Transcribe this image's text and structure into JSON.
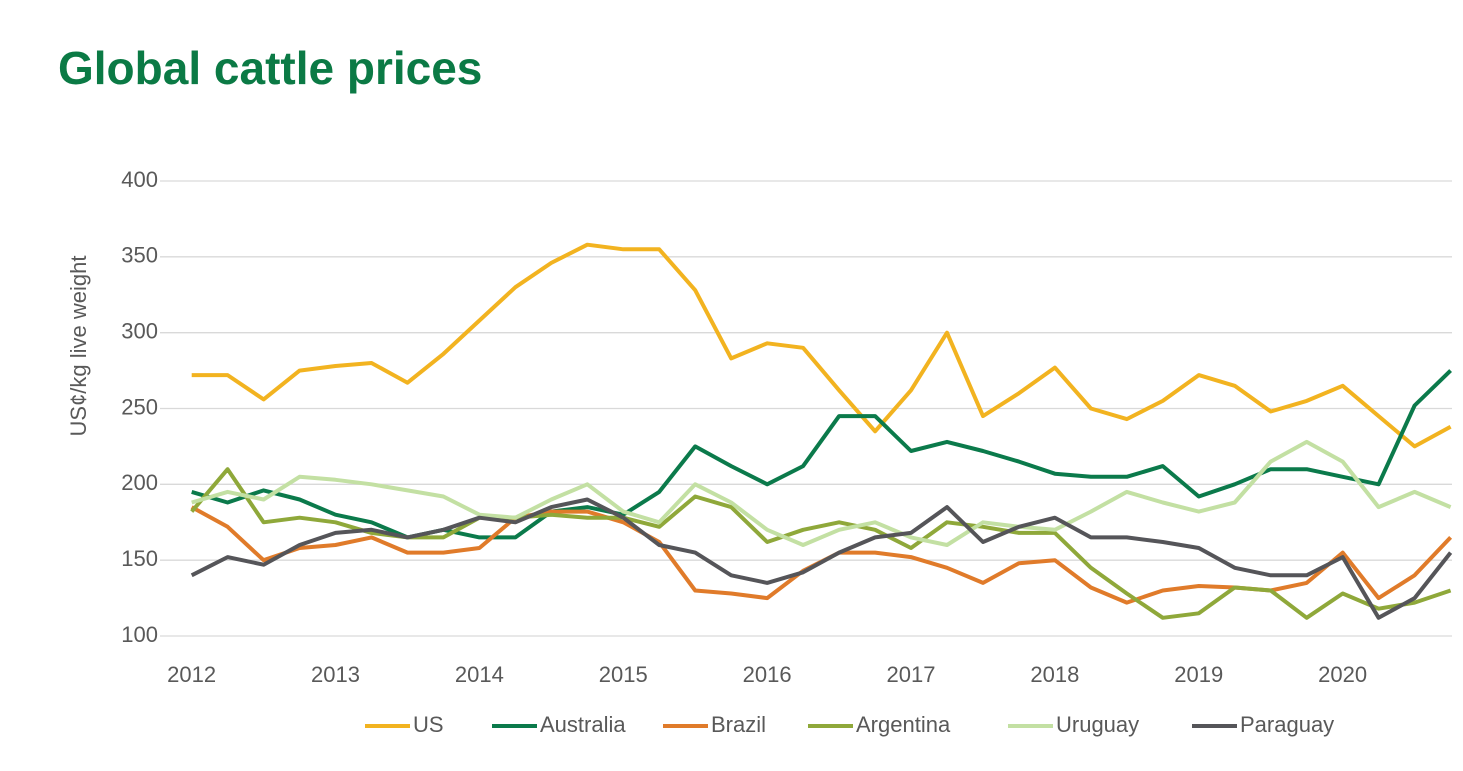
{
  "chart_data": {
    "type": "line",
    "title": "Global cattle prices",
    "y_label": "US¢/kg live weight",
    "grid": true,
    "legend": "bottom",
    "xlim": [
      2011.78,
      2020.76
    ],
    "xticks": [
      2012,
      2013,
      2014,
      2015,
      2016,
      2017,
      2018,
      2019,
      2020
    ],
    "ylim": [
      100,
      400
    ],
    "yticks": [
      100,
      150,
      200,
      250,
      300,
      350,
      400
    ],
    "x": [
      2012,
      2012.25,
      2012.5,
      2012.75,
      2013,
      2013.25,
      2013.5,
      2013.75,
      2014,
      2014.25,
      2014.5,
      2014.75,
      2015,
      2015.25,
      2015.5,
      2015.75,
      2016,
      2016.25,
      2016.5,
      2016.75,
      2017,
      2017.25,
      2017.5,
      2017.75,
      2018,
      2018.25,
      2018.5,
      2018.75,
      2019,
      2019.25,
      2019.5,
      2019.75,
      2020,
      2020.25,
      2020.5,
      2020.75
    ],
    "series": [
      {
        "name": "US",
        "color": "#f2b320",
        "values": [
          272,
          272,
          256,
          275,
          278,
          280,
          267,
          286,
          308,
          330,
          346,
          358,
          355,
          355,
          328,
          283,
          293,
          290,
          262,
          235,
          262,
          300,
          245,
          260,
          277,
          250,
          243,
          255,
          272,
          265,
          248,
          255,
          265,
          245,
          225,
          238
        ]
      },
      {
        "name": "Australia",
        "color": "#0b7a4b",
        "values": [
          195,
          188,
          196,
          190,
          180,
          175,
          165,
          170,
          165,
          165,
          182,
          185,
          180,
          195,
          225,
          212,
          200,
          212,
          245,
          245,
          222,
          228,
          222,
          215,
          207,
          205,
          205,
          212,
          192,
          200,
          210,
          210,
          205,
          200,
          252,
          275
        ]
      },
      {
        "name": "Brazil",
        "color": "#e07b2a",
        "values": [
          185,
          172,
          150,
          158,
          160,
          165,
          155,
          155,
          158,
          178,
          182,
          182,
          175,
          162,
          130,
          128,
          125,
          143,
          155,
          155,
          152,
          145,
          135,
          148,
          150,
          132,
          122,
          130,
          133,
          132,
          130,
          135,
          155,
          125,
          140,
          165
        ]
      },
      {
        "name": "Argentina",
        "color": "#8fa83a",
        "values": [
          182,
          210,
          175,
          178,
          175,
          168,
          165,
          165,
          178,
          178,
          180,
          178,
          178,
          172,
          192,
          185,
          162,
          170,
          175,
          170,
          158,
          175,
          172,
          168,
          168,
          145,
          128,
          112,
          115,
          132,
          130,
          112,
          128,
          118,
          122,
          130
        ]
      },
      {
        "name": "Uruguay",
        "color": "#c3e0a3",
        "values": [
          188,
          195,
          190,
          205,
          203,
          200,
          196,
          192,
          180,
          178,
          190,
          200,
          182,
          175,
          200,
          188,
          170,
          160,
          170,
          175,
          165,
          160,
          175,
          172,
          170,
          182,
          195,
          188,
          182,
          188,
          215,
          228,
          215,
          185,
          195,
          185
        ]
      },
      {
        "name": "Paraguay",
        "color": "#555559",
        "values": [
          140,
          152,
          147,
          160,
          168,
          170,
          165,
          170,
          178,
          175,
          185,
          190,
          178,
          160,
          155,
          140,
          135,
          142,
          155,
          165,
          168,
          185,
          162,
          172,
          178,
          165,
          165,
          162,
          158,
          145,
          140,
          140,
          152,
          112,
          125,
          155
        ]
      }
    ]
  }
}
